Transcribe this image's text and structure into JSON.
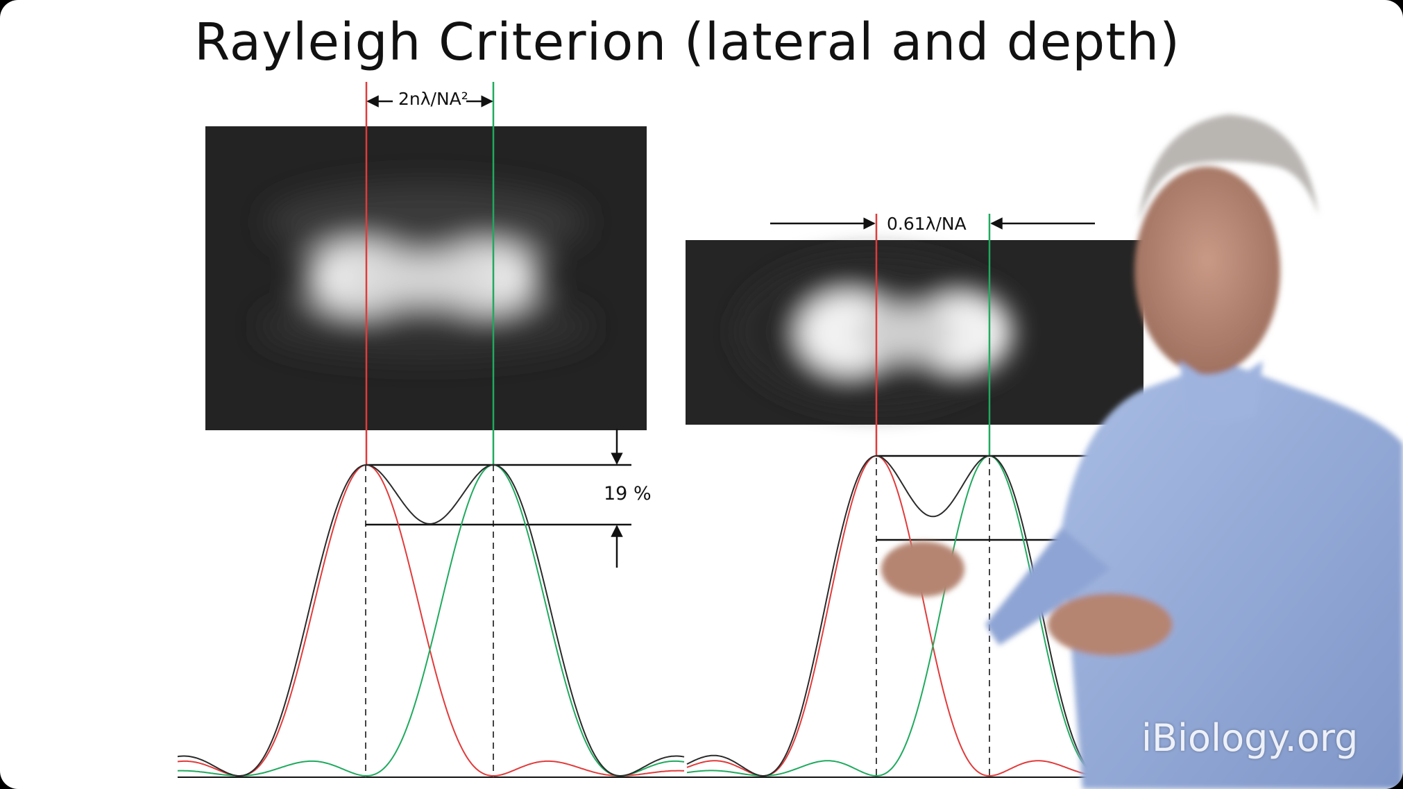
{
  "slide": {
    "title": "Rayleigh Criterion (lateral and depth)",
    "depth_label": "2nλ/NA²",
    "lateral_label": "0.61λ/NA",
    "dip_label": "19 %",
    "watermark": "iBiology.org"
  },
  "colors": {
    "red_line": "#e23a3a",
    "green_line": "#1faa5e",
    "sum_line": "#2a2a2a",
    "image_bg": "#222222"
  }
}
